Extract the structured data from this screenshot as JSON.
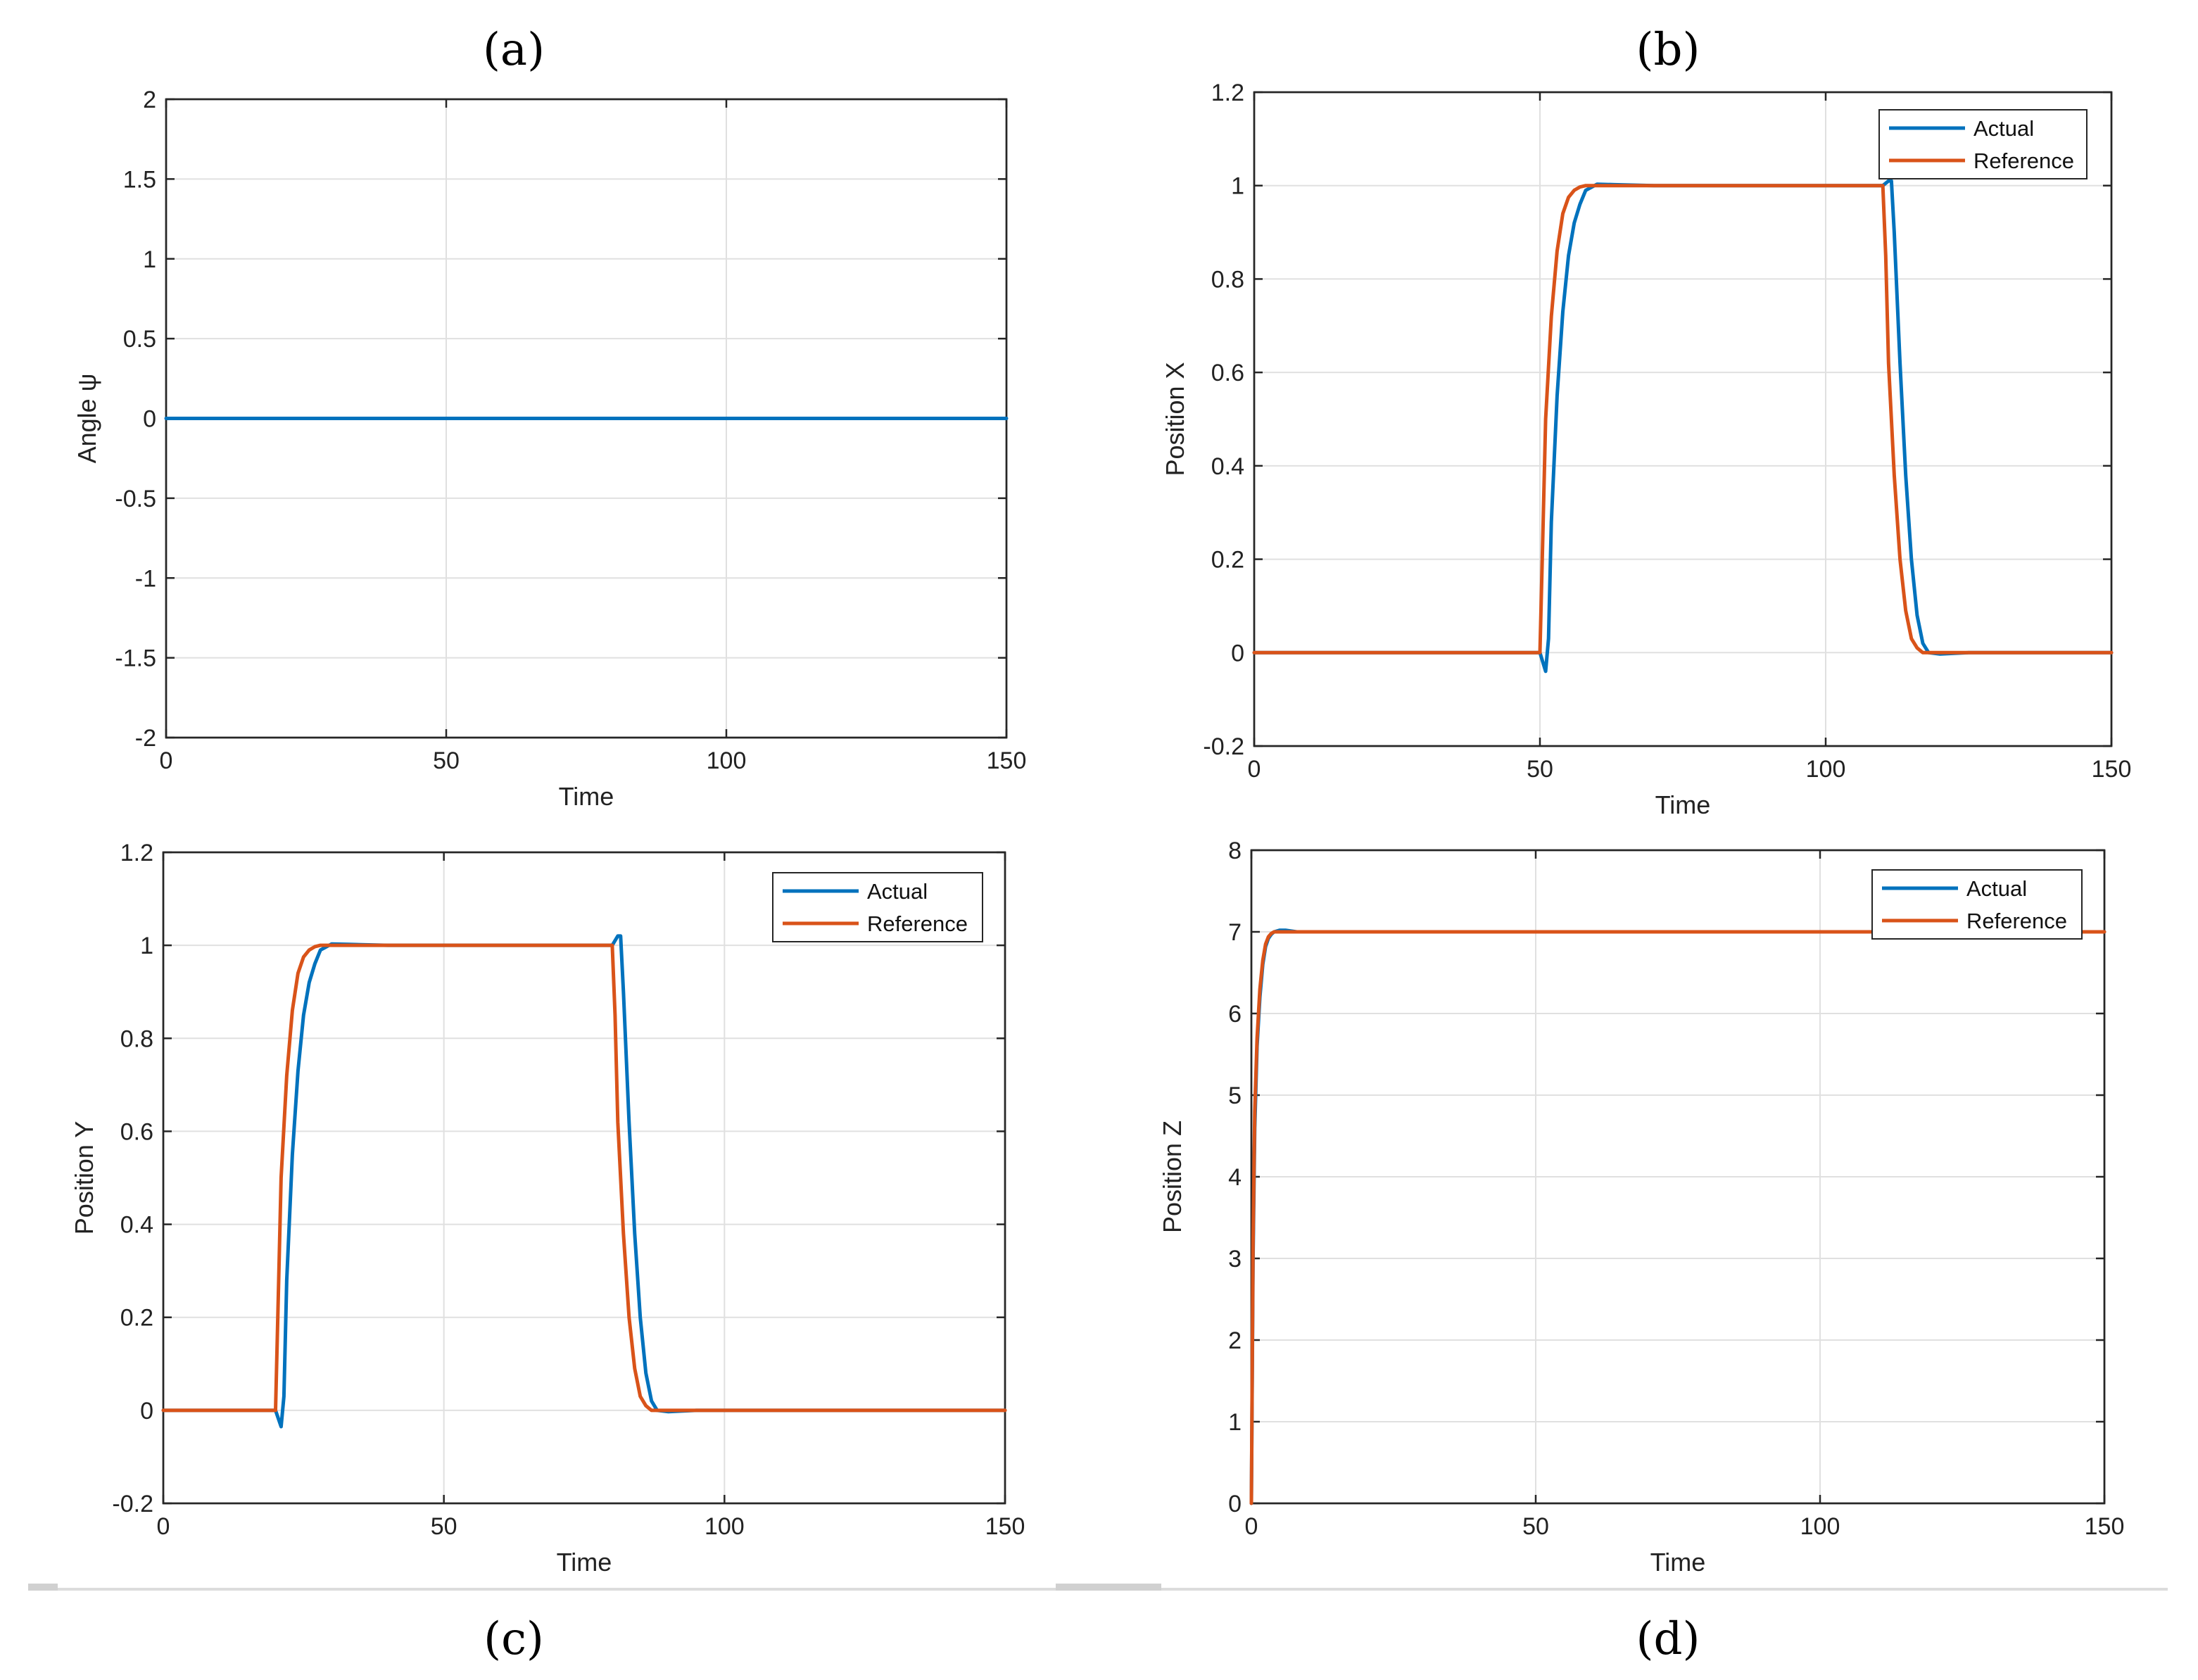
{
  "colors": {
    "actual": "#0072BD",
    "reference": "#D95319"
  },
  "chart_data": [
    {
      "type": "line",
      "panel": "(a)",
      "xlabel": "Time",
      "ylabel": "Angle ψ",
      "xlim": [
        0,
        150
      ],
      "ylim": [
        -2,
        2
      ],
      "xticks": [
        "0",
        "50",
        "100",
        "150"
      ],
      "yticks": [
        "-2",
        "-1.5",
        "-1",
        "-0.5",
        "0",
        "0.5",
        "1",
        "1.5",
        "2"
      ],
      "grid": true,
      "legend": [],
      "series": [
        {
          "name": "Actual",
          "x": [
            0,
            150
          ],
          "y": [
            0,
            0
          ]
        }
      ]
    },
    {
      "type": "line",
      "panel": "(b)",
      "xlabel": "Time",
      "ylabel": "Position X",
      "xlim": [
        0,
        150
      ],
      "ylim": [
        -0.2,
        1.2
      ],
      "xticks": [
        "0",
        "50",
        "100",
        "150"
      ],
      "yticks": [
        "-0.2",
        "0",
        "0.2",
        "0.4",
        "0.6",
        "0.8",
        "1",
        "1.2"
      ],
      "grid": true,
      "legend": [
        "Actual",
        "Reference"
      ],
      "legend_position": "top-right",
      "series": [
        {
          "name": "Actual",
          "x": [
            0,
            50,
            51,
            51.5,
            52,
            53,
            54,
            55,
            56,
            57,
            58,
            60,
            63,
            70,
            110,
            111,
            111.5,
            112,
            113,
            114,
            115,
            116,
            117,
            118,
            120,
            125,
            150
          ],
          "y": [
            0,
            0,
            -0.04,
            0.03,
            0.28,
            0.55,
            0.73,
            0.85,
            0.92,
            0.96,
            0.99,
            1.003,
            1.002,
            1.0,
            1.0,
            1.01,
            1.01,
            0.9,
            0.62,
            0.38,
            0.2,
            0.08,
            0.02,
            0.0,
            -0.003,
            0,
            0
          ]
        },
        {
          "name": "Reference",
          "x": [
            0,
            50,
            50.5,
            51,
            52,
            53,
            54,
            55,
            56,
            57,
            58,
            60,
            65,
            110,
            110.5,
            111,
            112,
            113,
            114,
            115,
            116,
            117,
            120,
            150
          ],
          "y": [
            0,
            0,
            0.25,
            0.5,
            0.72,
            0.86,
            0.94,
            0.975,
            0.99,
            0.997,
            1.0,
            1.0,
            1.0,
            1.0,
            0.85,
            0.62,
            0.38,
            0.2,
            0.09,
            0.03,
            0.01,
            0.0,
            0,
            0
          ]
        }
      ]
    },
    {
      "type": "line",
      "panel": "(c)",
      "xlabel": "Time",
      "ylabel": "Position Y",
      "xlim": [
        0,
        150
      ],
      "ylim": [
        -0.2,
        1.2
      ],
      "xticks": [
        "0",
        "50",
        "100",
        "150"
      ],
      "yticks": [
        "-0.2",
        "0",
        "0.2",
        "0.4",
        "0.6",
        "0.8",
        "1",
        "1.2"
      ],
      "grid": true,
      "legend": [
        "Actual",
        "Reference"
      ],
      "legend_position": "top-right",
      "series": [
        {
          "name": "Actual",
          "x": [
            0,
            20,
            21,
            21.5,
            22,
            23,
            24,
            25,
            26,
            27,
            28,
            30,
            33,
            40,
            80,
            81,
            81.5,
            82,
            83,
            84,
            85,
            86,
            87,
            88,
            90,
            95,
            150
          ],
          "y": [
            0,
            0,
            -0.035,
            0.03,
            0.28,
            0.55,
            0.73,
            0.85,
            0.92,
            0.96,
            0.99,
            1.003,
            1.002,
            1.0,
            1.0,
            1.02,
            1.02,
            0.9,
            0.62,
            0.38,
            0.2,
            0.08,
            0.02,
            0.0,
            -0.003,
            0,
            0
          ]
        },
        {
          "name": "Reference",
          "x": [
            0,
            20,
            20.5,
            21,
            22,
            23,
            24,
            25,
            26,
            27,
            28,
            30,
            35,
            80,
            80.5,
            81,
            82,
            83,
            84,
            85,
            86,
            87,
            90,
            150
          ],
          "y": [
            0,
            0,
            0.25,
            0.5,
            0.72,
            0.86,
            0.94,
            0.975,
            0.99,
            0.997,
            1.0,
            1.0,
            1.0,
            1.0,
            0.85,
            0.62,
            0.38,
            0.2,
            0.09,
            0.03,
            0.01,
            0.0,
            0,
            0
          ]
        }
      ]
    },
    {
      "type": "line",
      "panel": "(d)",
      "xlabel": "Time",
      "ylabel": "Position Z",
      "xlim": [
        0,
        150
      ],
      "ylim": [
        0,
        8
      ],
      "xticks": [
        "0",
        "50",
        "100",
        "150"
      ],
      "yticks": [
        "0",
        "1",
        "2",
        "3",
        "4",
        "5",
        "6",
        "7",
        "8"
      ],
      "grid": true,
      "legend": [
        "Actual",
        "Reference"
      ],
      "legend_position": "top-right",
      "series": [
        {
          "name": "Actual",
          "x": [
            0,
            0.3,
            0.6,
            1,
            1.5,
            2,
            2.5,
            3,
            3.5,
            4,
            5,
            6,
            8,
            150
          ],
          "y": [
            0,
            3.0,
            4.6,
            5.6,
            6.2,
            6.6,
            6.82,
            6.92,
            6.97,
            7.0,
            7.02,
            7.02,
            7.0,
            7.0
          ]
        },
        {
          "name": "Reference",
          "x": [
            0,
            0.3,
            0.6,
            1,
            1.5,
            2,
            2.5,
            3,
            3.5,
            4,
            5,
            6,
            150
          ],
          "y": [
            0,
            3.2,
            4.8,
            5.7,
            6.3,
            6.65,
            6.85,
            6.94,
            6.98,
            7.0,
            7.0,
            7.0,
            7.0
          ]
        }
      ]
    }
  ]
}
